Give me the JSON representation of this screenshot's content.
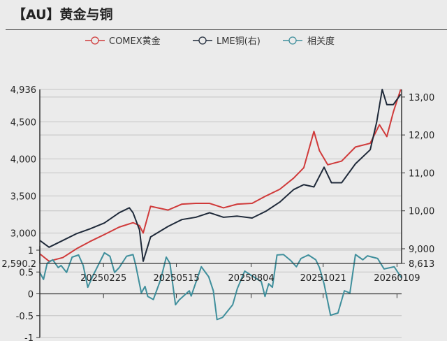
{
  "header": {
    "title": "【AU】黄金与铜"
  },
  "colors": {
    "gold": "#d03a3a",
    "copper": "#1f2a3a",
    "corr": "#3f8f9c",
    "grid": "#c4c4c4",
    "axis": "#333333"
  },
  "chart_data": [
    {
      "type": "line",
      "legend_position": "top",
      "grid": true,
      "x_type": "date",
      "xlim": [
        "2024-12-18",
        "2026-01-14"
      ],
      "y_left": {
        "ylim": [
          2590.2,
          4936
        ],
        "ticks": [
          "2,590.2",
          "3,000",
          "3,500",
          "4,000",
          "4,500",
          "4,936"
        ],
        "tick_values": [
          2590.2,
          3000,
          3500,
          4000,
          4500,
          4936
        ]
      },
      "y_right": {
        "ylim": [
          8613,
          13200
        ],
        "ticks": [
          "8,613",
          "9,000",
          "10,00",
          "11,00",
          "12,00",
          "13,00"
        ],
        "tick_values": [
          8613,
          9000,
          10000,
          11000,
          12000,
          13000
        ]
      },
      "series": [
        {
          "name": "COMEX黄金",
          "axis": "left",
          "x": [
            "2024-12-18",
            "2024-12-28",
            "2025-01-12",
            "2025-01-27",
            "2025-02-11",
            "2025-02-26",
            "2025-03-14",
            "2025-03-29",
            "2025-04-05",
            "2025-04-09",
            "2025-04-17",
            "2025-05-06",
            "2025-05-21",
            "2025-06-05",
            "2025-06-20",
            "2025-07-05",
            "2025-07-20",
            "2025-08-05",
            "2025-08-20",
            "2025-09-04",
            "2025-09-19",
            "2025-09-30",
            "2025-10-11",
            "2025-10-17",
            "2025-10-26",
            "2025-11-10",
            "2025-11-25",
            "2025-12-11",
            "2025-12-21",
            "2025-12-29",
            "2026-01-05",
            "2026-01-13"
          ],
          "y": [
            2720,
            2620,
            2670,
            2790,
            2890,
            2980,
            3080,
            3140,
            3100,
            3000,
            3360,
            3310,
            3390,
            3400,
            3400,
            3340,
            3390,
            3400,
            3500,
            3590,
            3740,
            3880,
            4370,
            4110,
            3920,
            3970,
            4160,
            4210,
            4460,
            4300,
            4630,
            4936
          ]
        },
        {
          "name": "LME铜(右)",
          "axis": "right",
          "x": [
            "2024-12-18",
            "2024-12-28",
            "2025-01-12",
            "2025-01-27",
            "2025-02-11",
            "2025-02-26",
            "2025-03-14",
            "2025-03-25",
            "2025-03-29",
            "2025-04-05",
            "2025-04-09",
            "2025-04-17",
            "2025-05-06",
            "2025-05-21",
            "2025-06-05",
            "2025-06-20",
            "2025-07-05",
            "2025-07-20",
            "2025-08-05",
            "2025-08-20",
            "2025-09-04",
            "2025-09-19",
            "2025-09-30",
            "2025-10-11",
            "2025-10-22",
            "2025-10-30",
            "2025-11-10",
            "2025-11-25",
            "2025-12-11",
            "2025-12-18",
            "2025-12-24",
            "2025-12-29",
            "2026-01-05",
            "2026-01-13"
          ],
          "y": [
            9220,
            9040,
            9220,
            9400,
            9530,
            9680,
            9950,
            10080,
            9950,
            9500,
            8670,
            9310,
            9590,
            9770,
            9830,
            9950,
            9830,
            9860,
            9810,
            9990,
            10230,
            10560,
            10690,
            10630,
            11150,
            10740,
            10740,
            11240,
            11610,
            12340,
            13200,
            12800,
            12800,
            13070
          ]
        }
      ]
    },
    {
      "type": "line",
      "grid": true,
      "x_type": "date",
      "xlim": [
        "2024-12-18",
        "2026-01-14"
      ],
      "ylim": [
        -1,
        1
      ],
      "y_ticks": [
        "-1",
        "-0.5",
        "0",
        "0.5",
        "1"
      ],
      "x_ticks": [
        "20250225",
        "20250515",
        "20250804",
        "20251021",
        "20260109"
      ],
      "series": [
        {
          "name": "相关度",
          "x": [
            "2024-12-18",
            "2024-12-22",
            "2024-12-26",
            "2025-01-01",
            "2025-01-07",
            "2025-01-10",
            "2025-01-16",
            "2025-01-22",
            "2025-01-29",
            "2025-02-03",
            "2025-02-08",
            "2025-02-13",
            "2025-02-26",
            "2025-03-04",
            "2025-03-09",
            "2025-03-14",
            "2025-03-22",
            "2025-03-29",
            "2025-04-01",
            "2025-04-07",
            "2025-04-11",
            "2025-04-14",
            "2025-04-20",
            "2025-04-28",
            "2025-05-04",
            "2025-05-08",
            "2025-05-14",
            "2025-05-18",
            "2025-05-29",
            "2025-05-31",
            "2025-06-11",
            "2025-06-19",
            "2025-06-24",
            "2025-06-28",
            "2025-07-04",
            "2025-07-15",
            "2025-07-20",
            "2025-07-28",
            "2025-08-05",
            "2025-08-15",
            "2025-08-19",
            "2025-08-23",
            "2025-08-27",
            "2025-09-01",
            "2025-09-08",
            "2025-09-16",
            "2025-09-22",
            "2025-09-27",
            "2025-10-05",
            "2025-10-13",
            "2025-10-17",
            "2025-10-22",
            "2025-10-29",
            "2025-11-06",
            "2025-11-13",
            "2025-11-19",
            "2025-11-25",
            "2025-12-03",
            "2025-12-08",
            "2025-12-19",
            "2025-12-26",
            "2026-01-06",
            "2026-01-14"
          ],
          "y": [
            0.49,
            0.33,
            0.7,
            0.78,
            0.6,
            0.65,
            0.49,
            0.84,
            0.89,
            0.65,
            0.15,
            0.39,
            0.94,
            0.86,
            0.49,
            0.6,
            0.86,
            0.9,
            0.65,
            0.02,
            0.17,
            -0.06,
            -0.13,
            0.33,
            0.84,
            0.7,
            -0.25,
            -0.14,
            0.07,
            -0.05,
            0.62,
            0.39,
            0.07,
            -0.59,
            -0.54,
            -0.25,
            0.12,
            0.52,
            0.41,
            0.28,
            -0.06,
            0.23,
            0.15,
            0.89,
            0.9,
            0.76,
            0.62,
            0.81,
            0.89,
            0.78,
            0.6,
            0.23,
            -0.49,
            -0.44,
            0.07,
            0.02,
            0.9,
            0.78,
            0.87,
            0.81,
            0.57,
            0.62,
            0.36
          ]
        }
      ]
    }
  ]
}
